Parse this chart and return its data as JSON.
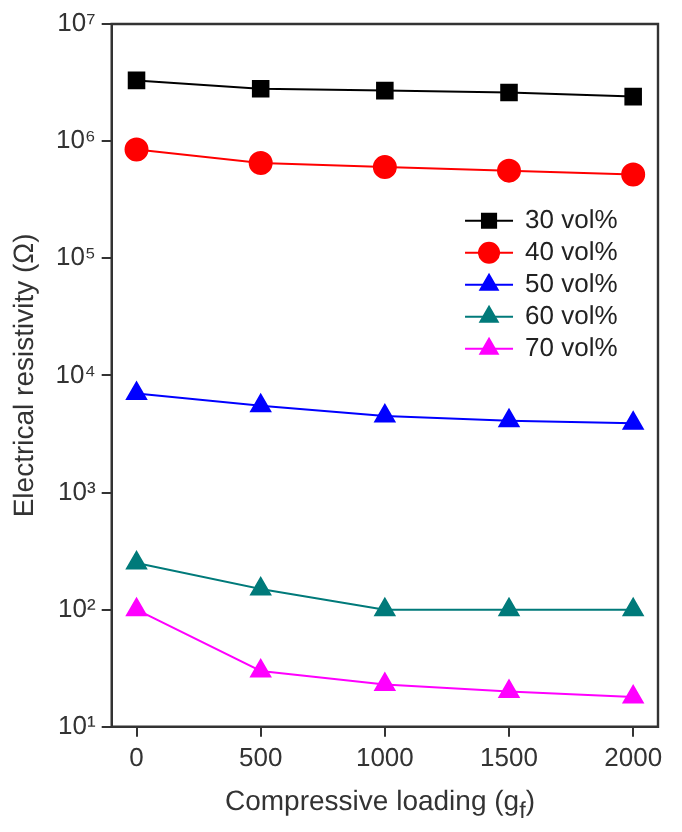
{
  "chart_data": {
    "type": "line",
    "xlabel": "Compressive loading (g$_{f}$)",
    "ylabel": "Electrical resistivity (Ω)",
    "x": [
      0,
      500,
      1000,
      1500,
      2000
    ],
    "series": [
      {
        "name": "30 vol%",
        "color": "#000000",
        "marker": "square",
        "values": [
          3300000,
          2800000,
          2700000,
          2600000,
          2400000
        ]
      },
      {
        "name": "40 vol%",
        "color": "#ff0000",
        "marker": "circle",
        "values": [
          850000,
          650000,
          600000,
          560000,
          520000
        ]
      },
      {
        "name": "50 vol%",
        "color": "#0000ff",
        "marker": "triangle",
        "values": [
          7000,
          5500,
          4500,
          4100,
          3900
        ]
      },
      {
        "name": "60 vol%",
        "color": "#007a7a",
        "marker": "triangle",
        "values": [
          250,
          150,
          100,
          100,
          100
        ]
      },
      {
        "name": "70 vol%",
        "color": "#ff00ff",
        "marker": "triangle",
        "values": [
          100,
          30,
          23,
          20,
          18
        ]
      }
    ],
    "log": "y",
    "xlim": [
      -100,
      2100
    ],
    "xticks": [
      0,
      500,
      1000,
      1500,
      2000
    ],
    "ylim": [
      10,
      10000000
    ],
    "yticks": [
      {
        "value": 10,
        "label": "10¹"
      },
      {
        "value": 100,
        "label": "10²"
      },
      {
        "value": 1000,
        "label": "10³"
      },
      {
        "value": 10000,
        "label": "10⁴"
      },
      {
        "value": 100000,
        "label": "10⁵"
      },
      {
        "value": 1000000,
        "label": "10⁶"
      },
      {
        "value": 10000000,
        "label": "10⁷"
      }
    ],
    "grid": false,
    "legend": "right",
    "line_style": "solid"
  }
}
